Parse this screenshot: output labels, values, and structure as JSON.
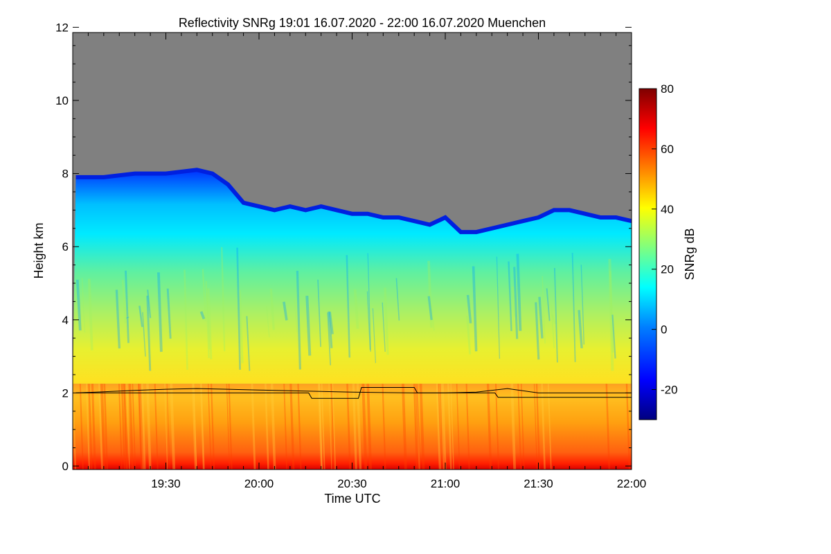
{
  "chart_data": {
    "type": "heatmap",
    "title": "Reflectivity SNRg   19:01 16.07.2020 - 22:00 16.07.2020 Muenchen",
    "xlabel": "Time UTC",
    "ylabel": "Height km",
    "colorbar_label": "SNRg dB",
    "x_ticks": [
      "19:30",
      "20:00",
      "20:30",
      "21:00",
      "21:30",
      "22:00"
    ],
    "x_tick_minutes": [
      30,
      60,
      90,
      120,
      150,
      180
    ],
    "xlim_minutes": [
      1,
      180
    ],
    "y_ticks": [
      0,
      2,
      4,
      6,
      8,
      10,
      12
    ],
    "ylim": [
      0,
      12
    ],
    "colorbar_ticks": [
      -20,
      0,
      20,
      40,
      60,
      80
    ],
    "colorbar_range": [
      -30,
      80
    ],
    "no_signal_color": "#808080",
    "cloud_top_km": {
      "minutes": [
        1,
        10,
        20,
        30,
        40,
        45,
        50,
        55,
        60,
        65,
        70,
        75,
        80,
        85,
        90,
        95,
        100,
        105,
        110,
        115,
        120,
        125,
        130,
        135,
        140,
        145,
        150,
        155,
        160,
        165,
        170,
        175,
        180
      ],
      "height": [
        7.9,
        7.9,
        8.0,
        8.0,
        8.1,
        8.0,
        7.7,
        7.2,
        7.1,
        7.0,
        7.1,
        7.0,
        7.1,
        7.0,
        6.9,
        6.9,
        6.8,
        6.8,
        6.7,
        6.6,
        6.8,
        6.4,
        6.4,
        6.5,
        6.6,
        6.7,
        6.8,
        7.0,
        7.0,
        6.9,
        6.8,
        6.8,
        6.7
      ]
    },
    "bright_band_top_km": 2.25,
    "mixing_layer_height_km": {
      "minutes": [
        1,
        10,
        20,
        30,
        40,
        50,
        60,
        70,
        80,
        90,
        100,
        110,
        120,
        130,
        140,
        150,
        160,
        170,
        180
      ],
      "height": [
        2.0,
        2.03,
        2.07,
        2.1,
        2.12,
        2.1,
        2.08,
        2.06,
        2.04,
        2.02,
        2.01,
        2.0,
        2.0,
        2.02,
        2.12,
        2.0,
        2.0,
        2.0,
        2.0
      ]
    },
    "cloud_base_km": {
      "minutes": [
        1,
        76,
        77,
        92,
        93,
        110,
        111,
        136,
        137,
        180
      ],
      "height": [
        2.0,
        2.0,
        1.85,
        1.85,
        2.15,
        2.15,
        2.0,
        2.0,
        1.88,
        1.88
      ]
    },
    "colors": {
      "colormap": [
        "#00007f",
        "#0000ff",
        "#007fff",
        "#00ffff",
        "#7fff7f",
        "#ffff00",
        "#ff7f00",
        "#ff0000",
        "#7f0000"
      ]
    }
  }
}
